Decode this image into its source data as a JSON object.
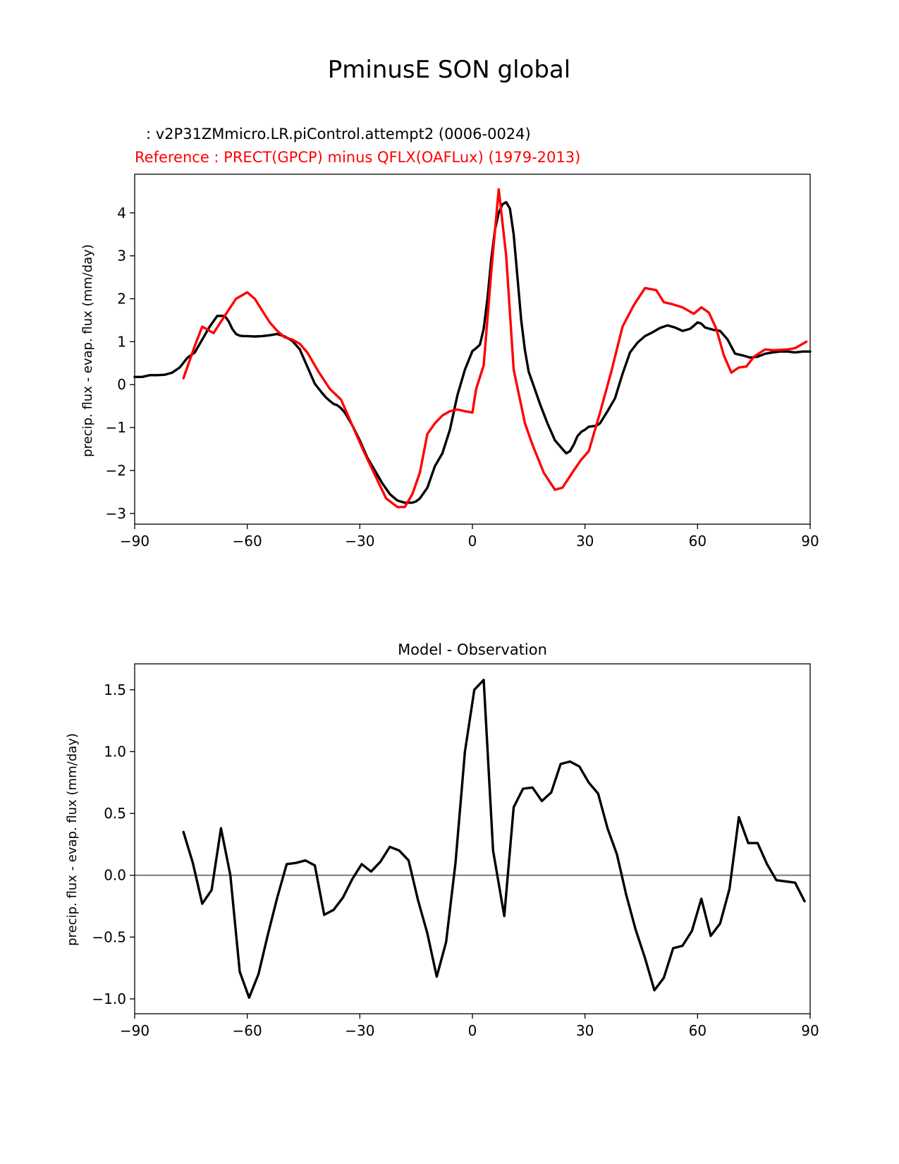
{
  "figure_title": "PminusE SON global",
  "chart_data": [
    {
      "type": "line",
      "test_label": ": v2P31ZMmicro.LR.piControl.attempt2 (0006-0024)",
      "reference_label": "Reference : PRECT(GPCP) minus QFLX(OAFLux) (1979-2013)",
      "ylabel": "precip. flux - evap. flux (mm/day)",
      "xlabel": "",
      "xlim": [
        -90,
        90
      ],
      "ylim": [
        -3.25,
        4.9
      ],
      "xticks": [
        -90,
        -60,
        -30,
        0,
        30,
        60,
        90
      ],
      "xtick_labels": [
        "−90",
        "−60",
        "−30",
        "0",
        "30",
        "60",
        "90"
      ],
      "yticks": [
        -3,
        -2,
        -1,
        0,
        1,
        2,
        3,
        4
      ],
      "ytick_labels": [
        "−3",
        "−2",
        "−1",
        "0",
        "1",
        "2",
        "3",
        "4"
      ],
      "series": [
        {
          "name": "test",
          "color": "#000000",
          "x": [
            -90,
            -88,
            -86,
            -84,
            -82,
            -80,
            -78,
            -76,
            -74,
            -72,
            -70,
            -68,
            -66,
            -65,
            -64,
            -63,
            -62,
            -61,
            -60,
            -58,
            -56,
            -54,
            -52,
            -50,
            -48,
            -46,
            -44,
            -42,
            -40,
            -39,
            -38,
            -37,
            -36,
            -35,
            -34,
            -32,
            -30,
            -28,
            -26,
            -24,
            -22,
            -20,
            -18,
            -16,
            -15,
            -14,
            -12,
            -10,
            -8,
            -6,
            -4,
            -2,
            0,
            1,
            2,
            3,
            4,
            5,
            6,
            7,
            8,
            9,
            10,
            11,
            12,
            13,
            14,
            15,
            16,
            18,
            20,
            22,
            24,
            25,
            26,
            27,
            28,
            29,
            30,
            31,
            32,
            33,
            34,
            36,
            38,
            40,
            42,
            44,
            46,
            48,
            50,
            52,
            54,
            56,
            58,
            59,
            60,
            61,
            62,
            64,
            66,
            68,
            70,
            72,
            74,
            76,
            78,
            80,
            82,
            84,
            86,
            88,
            90
          ],
          "y": [
            0.18,
            0.18,
            0.22,
            0.22,
            0.23,
            0.28,
            0.4,
            0.62,
            0.75,
            1.05,
            1.35,
            1.6,
            1.6,
            1.48,
            1.3,
            1.18,
            1.14,
            1.13,
            1.13,
            1.12,
            1.13,
            1.15,
            1.18,
            1.12,
            1.02,
            0.82,
            0.42,
            0.02,
            -0.2,
            -0.3,
            -0.38,
            -0.45,
            -0.48,
            -0.55,
            -0.65,
            -0.95,
            -1.3,
            -1.7,
            -2.0,
            -2.3,
            -2.55,
            -2.7,
            -2.75,
            -2.75,
            -2.72,
            -2.65,
            -2.4,
            -1.9,
            -1.6,
            -1.05,
            -0.25,
            0.35,
            0.78,
            0.85,
            0.93,
            1.3,
            2.0,
            2.9,
            3.6,
            4.0,
            4.2,
            4.25,
            4.1,
            3.5,
            2.5,
            1.5,
            0.8,
            0.3,
            0.05,
            -0.45,
            -0.9,
            -1.3,
            -1.5,
            -1.6,
            -1.55,
            -1.4,
            -1.2,
            -1.1,
            -1.05,
            -0.98,
            -0.97,
            -0.96,
            -0.9,
            -0.62,
            -0.32,
            0.25,
            0.75,
            0.98,
            1.13,
            1.22,
            1.32,
            1.38,
            1.33,
            1.25,
            1.3,
            1.37,
            1.45,
            1.42,
            1.33,
            1.28,
            1.25,
            1.05,
            0.72,
            0.68,
            0.63,
            0.65,
            0.72,
            0.75,
            0.77,
            0.77,
            0.75,
            0.77,
            0.77
          ]
        },
        {
          "name": "reference",
          "color": "#ff0000",
          "x": [
            -77,
            -74,
            -72,
            -69,
            -66,
            -63,
            -60,
            -58,
            -56,
            -54,
            -52,
            -50,
            -48,
            -46,
            -44,
            -41,
            -38,
            -35,
            -32,
            -29,
            -26,
            -23,
            -20,
            -18,
            -16,
            -14,
            -12,
            -10,
            -8,
            -6,
            -4,
            -2,
            0,
            1,
            3,
            5,
            7,
            9,
            11,
            14,
            16,
            19,
            22,
            24,
            27,
            29,
            31,
            34,
            37,
            40,
            43,
            46,
            49,
            51,
            53,
            56,
            59,
            61,
            63,
            65,
            67,
            69,
            71,
            73,
            75,
            78,
            80,
            82,
            84,
            86,
            89
          ],
          "y": [
            0.15,
            0.9,
            1.35,
            1.2,
            1.6,
            2.0,
            2.15,
            2.0,
            1.72,
            1.45,
            1.25,
            1.1,
            1.05,
            0.95,
            0.75,
            0.3,
            -0.1,
            -0.35,
            -0.95,
            -1.55,
            -2.1,
            -2.65,
            -2.85,
            -2.85,
            -2.55,
            -2.05,
            -1.15,
            -0.9,
            -0.72,
            -0.62,
            -0.58,
            -0.62,
            -0.65,
            -0.1,
            0.45,
            2.6,
            4.55,
            3.0,
            0.35,
            -0.9,
            -1.4,
            -2.05,
            -2.45,
            -2.4,
            -2.0,
            -1.75,
            -1.55,
            -0.65,
            0.3,
            1.35,
            1.85,
            2.25,
            2.2,
            1.92,
            1.88,
            1.8,
            1.65,
            1.8,
            1.68,
            1.3,
            0.68,
            0.28,
            0.4,
            0.42,
            0.65,
            0.82,
            0.8,
            0.81,
            0.82,
            0.85,
            1.0
          ]
        }
      ]
    },
    {
      "type": "line",
      "title": "Model - Observation",
      "ylabel": "precip. flux - evap. flux (mm/day)",
      "xlabel": "",
      "xlim": [
        -90,
        90
      ],
      "ylim": [
        -1.12,
        1.71
      ],
      "xticks": [
        -90,
        -60,
        -30,
        0,
        30,
        60,
        90
      ],
      "xtick_labels": [
        "−90",
        "−60",
        "−30",
        "0",
        "30",
        "60",
        "90"
      ],
      "yticks": [
        -1.0,
        -0.5,
        0.0,
        0.5,
        1.0,
        1.5
      ],
      "ytick_labels": [
        "−1.0",
        "−0.5",
        "0.0",
        "0.5",
        "1.0",
        "1.5"
      ],
      "reference_line": {
        "y": 0,
        "color": "#808080"
      },
      "series": [
        {
          "name": "model minus observation",
          "color": "#000000",
          "x": [
            -77,
            -74.5,
            -72,
            -69.5,
            -67,
            -64.5,
            -62,
            -59.5,
            -57,
            -54.5,
            -52,
            -49.5,
            -47,
            -44.5,
            -42,
            -39.5,
            -37,
            -34.5,
            -32,
            -29.5,
            -27,
            -24.5,
            -22,
            -19.5,
            -17,
            -14.5,
            -12,
            -9.5,
            -7,
            -4.5,
            -2,
            0.5,
            3,
            5.5,
            8.5,
            11,
            13.5,
            16,
            18.5,
            21,
            23.5,
            26,
            28.5,
            31,
            33.5,
            36,
            38.5,
            41,
            43.5,
            46,
            48.5,
            51,
            53.5,
            56,
            58.5,
            61,
            63.5,
            66,
            68.5,
            71,
            73.5,
            76,
            78.5,
            81,
            86,
            88.5
          ],
          "y": [
            0.35,
            0.1,
            -0.23,
            -0.12,
            0.38,
            0.0,
            -0.78,
            -0.99,
            -0.8,
            -0.48,
            -0.18,
            0.09,
            0.1,
            0.12,
            0.08,
            -0.32,
            -0.28,
            -0.18,
            -0.03,
            0.09,
            0.03,
            0.11,
            0.23,
            0.2,
            0.12,
            -0.2,
            -0.47,
            -0.82,
            -0.54,
            0.1,
            1.0,
            1.5,
            1.58,
            0.2,
            -0.33,
            0.55,
            0.7,
            0.71,
            0.6,
            0.67,
            0.9,
            0.92,
            0.88,
            0.75,
            0.66,
            0.38,
            0.17,
            -0.16,
            -0.44,
            -0.67,
            -0.93,
            -0.83,
            -0.59,
            -0.57,
            -0.45,
            -0.19,
            -0.49,
            -0.39,
            -0.11,
            0.47,
            0.26,
            0.26,
            0.09,
            -0.04,
            -0.06,
            -0.21
          ]
        }
      ]
    }
  ]
}
